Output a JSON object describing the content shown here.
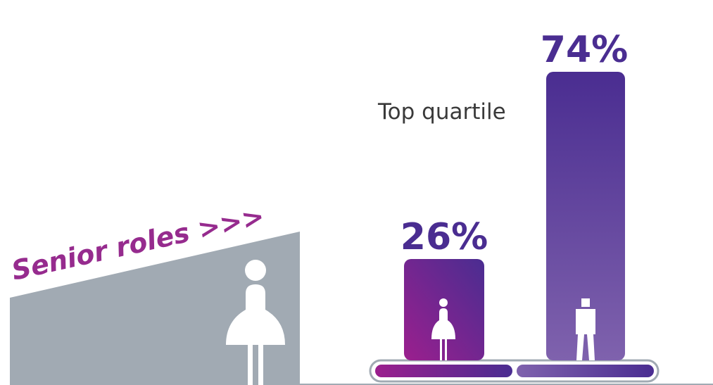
{
  "slogan": "Senior roles >>>",
  "chart_data": {
    "type": "bar",
    "title": "",
    "xlabel": "",
    "ylabel": "",
    "ylim": [
      0,
      80
    ],
    "annotation": "Top quartile",
    "categories": [
      "Women",
      "Men"
    ],
    "values": [
      26,
      74
    ],
    "value_labels": [
      "26%",
      "74%"
    ],
    "icons": [
      "woman-icon",
      "man-icon"
    ],
    "colors": {
      "women_start": "#9b1f8e",
      "women_end": "#4a2d91",
      "men_top": "#4a2d91",
      "men_bottom": "#7f62ad",
      "slope": "#a1aab3",
      "slogan_text": "#962b8e",
      "value_text": "#4a2d91",
      "label_text": "#3a3a3a",
      "axis": "#a1aab3"
    }
  }
}
